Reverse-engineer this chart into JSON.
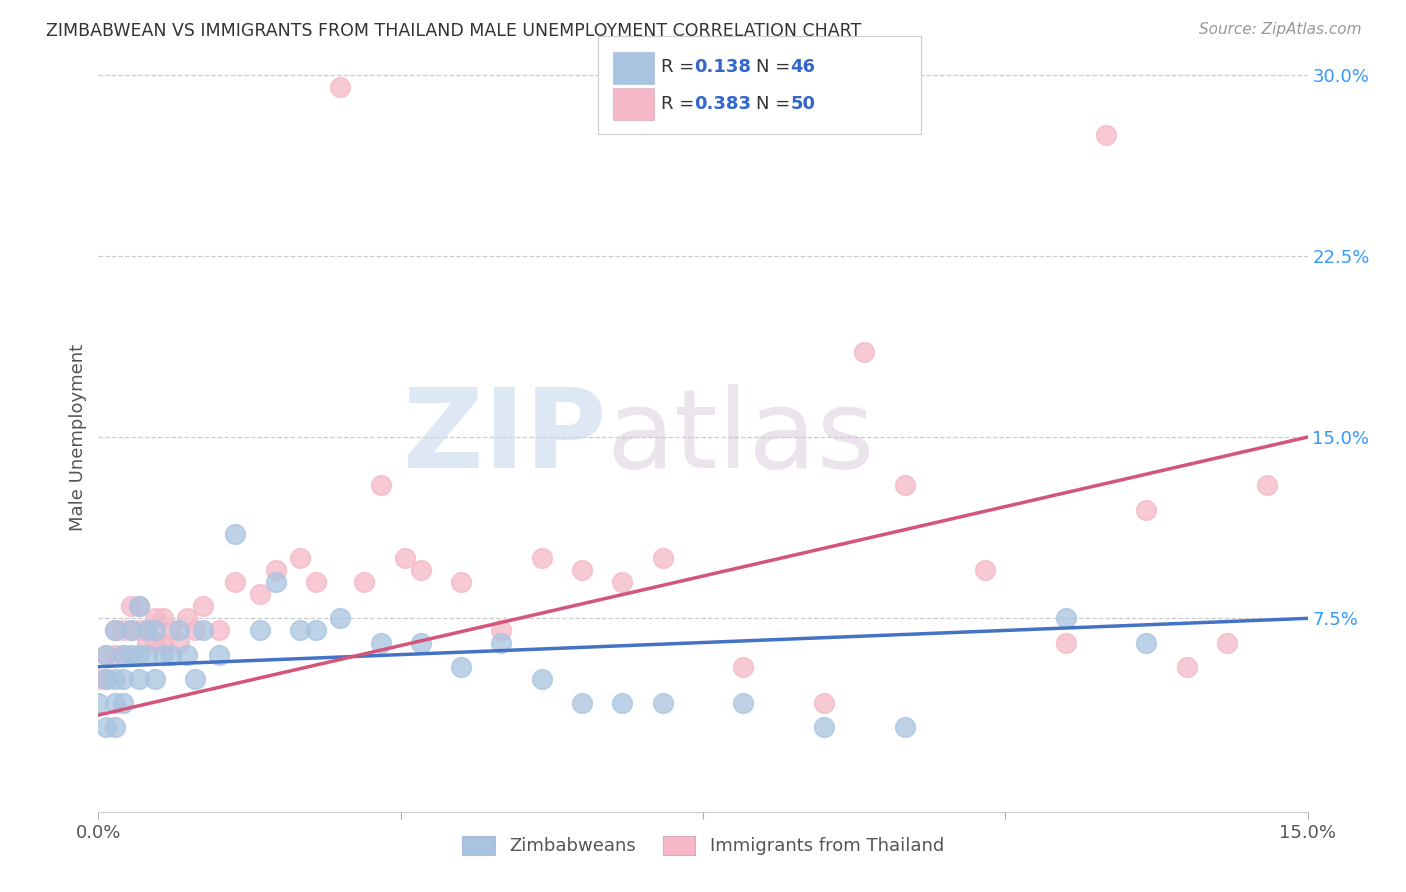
{
  "title": "ZIMBABWEAN VS IMMIGRANTS FROM THAILAND MALE UNEMPLOYMENT CORRELATION CHART",
  "source": "Source: ZipAtlas.com",
  "ylabel": "Male Unemployment",
  "legend_labels": [
    "Zimbabweans",
    "Immigrants from Thailand"
  ],
  "R_zimbabwean": 0.138,
  "N_zimbabwean": 46,
  "R_thailand": 0.383,
  "N_thailand": 50,
  "color_zimbabwean": "#a8c4e0",
  "color_thailand": "#f4b8c8",
  "line_color_zimbabwean": "#4472c4",
  "line_color_thailand": "#d4547a",
  "legend_text_color": "#3366cc",
  "watermark_zip": "ZIP",
  "watermark_atlas": "atlas",
  "background_color": "#ffffff",
  "grid_color": "#cccccc",
  "xlim": [
    0.0,
    0.15
  ],
  "ylim": [
    -0.005,
    0.305
  ],
  "zimbabwean_x": [
    0.0,
    0.001,
    0.001,
    0.001,
    0.002,
    0.002,
    0.002,
    0.002,
    0.003,
    0.003,
    0.003,
    0.004,
    0.004,
    0.005,
    0.005,
    0.005,
    0.006,
    0.006,
    0.007,
    0.007,
    0.008,
    0.009,
    0.01,
    0.011,
    0.012,
    0.013,
    0.015,
    0.017,
    0.02,
    0.022,
    0.025,
    0.027,
    0.03,
    0.035,
    0.04,
    0.045,
    0.05,
    0.055,
    0.06,
    0.065,
    0.07,
    0.08,
    0.09,
    0.1,
    0.12,
    0.13
  ],
  "zimbabwean_y": [
    0.04,
    0.06,
    0.05,
    0.03,
    0.07,
    0.05,
    0.04,
    0.03,
    0.06,
    0.05,
    0.04,
    0.07,
    0.06,
    0.08,
    0.06,
    0.05,
    0.07,
    0.06,
    0.07,
    0.05,
    0.06,
    0.06,
    0.07,
    0.06,
    0.05,
    0.07,
    0.06,
    0.11,
    0.07,
    0.09,
    0.07,
    0.07,
    0.075,
    0.065,
    0.065,
    0.055,
    0.065,
    0.05,
    0.04,
    0.04,
    0.04,
    0.04,
    0.03,
    0.03,
    0.075,
    0.065
  ],
  "thailand_x": [
    0.0,
    0.001,
    0.001,
    0.002,
    0.002,
    0.003,
    0.003,
    0.004,
    0.004,
    0.005,
    0.005,
    0.006,
    0.006,
    0.007,
    0.007,
    0.008,
    0.008,
    0.009,
    0.01,
    0.011,
    0.012,
    0.013,
    0.015,
    0.017,
    0.02,
    0.022,
    0.025,
    0.027,
    0.03,
    0.033,
    0.035,
    0.038,
    0.04,
    0.045,
    0.05,
    0.055,
    0.06,
    0.065,
    0.07,
    0.08,
    0.09,
    0.095,
    0.1,
    0.11,
    0.12,
    0.125,
    0.13,
    0.135,
    0.14,
    0.145
  ],
  "thailand_y": [
    0.05,
    0.06,
    0.05,
    0.07,
    0.06,
    0.07,
    0.06,
    0.08,
    0.07,
    0.08,
    0.07,
    0.07,
    0.065,
    0.075,
    0.065,
    0.075,
    0.065,
    0.07,
    0.065,
    0.075,
    0.07,
    0.08,
    0.07,
    0.09,
    0.085,
    0.095,
    0.1,
    0.09,
    0.295,
    0.09,
    0.13,
    0.1,
    0.095,
    0.09,
    0.07,
    0.1,
    0.095,
    0.09,
    0.1,
    0.055,
    0.04,
    0.185,
    0.13,
    0.095,
    0.065,
    0.275,
    0.12,
    0.055,
    0.065,
    0.13
  ]
}
